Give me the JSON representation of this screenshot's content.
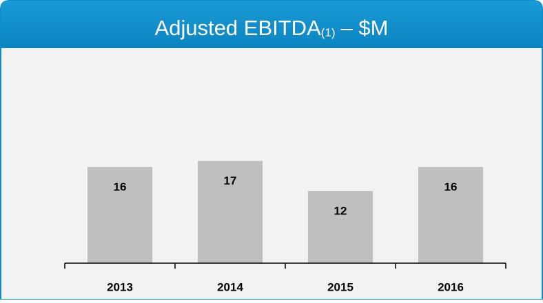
{
  "chart_data": {
    "type": "bar",
    "title": "Adjusted EBITDA",
    "title_note": "(1)",
    "title_unit": "– $M",
    "categories": [
      "2013",
      "2014",
      "2015",
      "2016"
    ],
    "values": [
      16,
      17,
      12,
      16
    ],
    "color": "#bfbfbf",
    "ylim": [
      0,
      32
    ]
  }
}
